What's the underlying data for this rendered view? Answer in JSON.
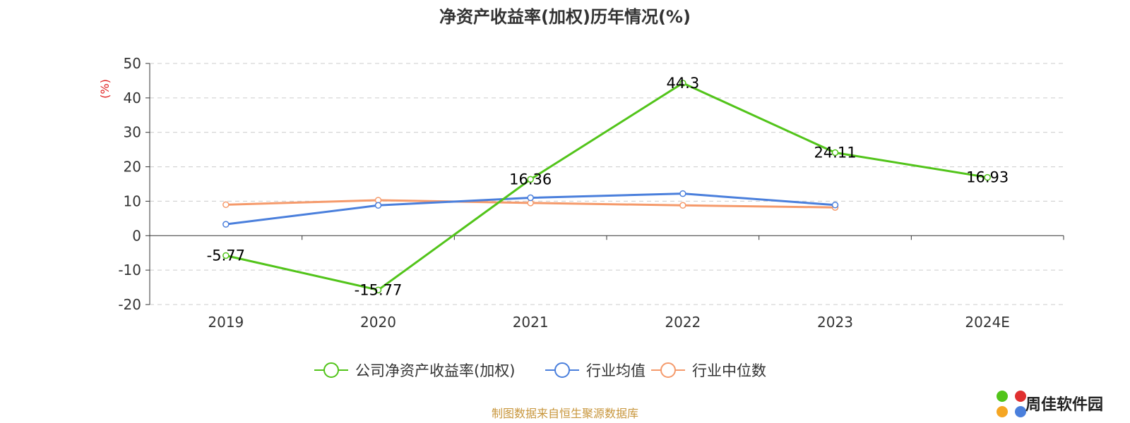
{
  "chart_data": {
    "type": "line",
    "title": "净资产收益率(加权)历年情况(%)",
    "ylabel": "(%)",
    "xlabel": "",
    "ylim": [
      -20,
      50
    ],
    "y_ticks": [
      50,
      40,
      30,
      20,
      10,
      0,
      -10,
      -20
    ],
    "categories": [
      "2019",
      "2020",
      "2021",
      "2022",
      "2023",
      "2024E"
    ],
    "grid": true,
    "legend_position": "bottom",
    "series": [
      {
        "name": "公司净资产收益率(加权)",
        "color": "#52c41a",
        "values": [
          -5.77,
          -15.77,
          16.36,
          44.3,
          24.11,
          16.93
        ],
        "labels": [
          "-5.77",
          "-15.77",
          "16.36",
          "44.3",
          "24.11",
          "16.93"
        ]
      },
      {
        "name": "行业均值",
        "color": "#4a7fdc",
        "values": [
          3.3,
          8.8,
          11.0,
          12.2,
          8.9,
          null
        ],
        "labels": []
      },
      {
        "name": "行业中位数",
        "color": "#f59a6b",
        "values": [
          9.0,
          10.3,
          9.5,
          8.8,
          8.2,
          null
        ],
        "labels": []
      }
    ]
  },
  "source_text": "制图数据来自恒生聚源数据库",
  "source_color": "#c8963c",
  "logo": {
    "text": "周佳软件园",
    "icon": "pinwheel-logo-icon"
  }
}
